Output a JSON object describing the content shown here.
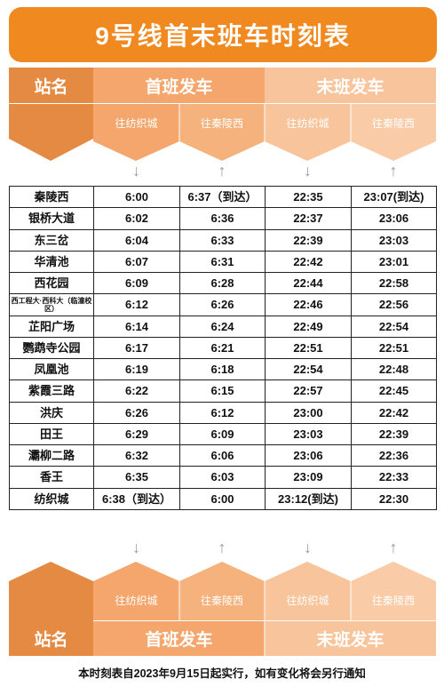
{
  "title": "9号线首末班车时刻表",
  "header": {
    "station_label": "站名",
    "first_train": "首班发车",
    "last_train": "末班发车",
    "dir_fangzhicheng": "往纺织城",
    "dir_qinlingxi": "往秦陵西",
    "arrow_down": "↓",
    "arrow_up": "↑"
  },
  "rows": [
    {
      "station": "秦陵西",
      "first_to_fzc": "6:00",
      "first_to_qlx": "6:37（到达）",
      "last_to_fzc": "22:35",
      "last_to_qlx": "23:07(到达)"
    },
    {
      "station": "银桥大道",
      "first_to_fzc": "6:02",
      "first_to_qlx": "6:36",
      "last_to_fzc": "22:37",
      "last_to_qlx": "23:06"
    },
    {
      "station": "东三岔",
      "first_to_fzc": "6:04",
      "first_to_qlx": "6:33",
      "last_to_fzc": "22:39",
      "last_to_qlx": "23:03"
    },
    {
      "station": "华清池",
      "first_to_fzc": "6:07",
      "first_to_qlx": "6:31",
      "last_to_fzc": "22:42",
      "last_to_qlx": "23:01"
    },
    {
      "station": "西花园",
      "first_to_fzc": "6:09",
      "first_to_qlx": "6:28",
      "last_to_fzc": "22:44",
      "last_to_qlx": "22:58"
    },
    {
      "station": "西工程大·西科大（临潼校区）",
      "first_to_fzc": "6:12",
      "first_to_qlx": "6:26",
      "last_to_fzc": "22:46",
      "last_to_qlx": "22:56"
    },
    {
      "station": "芷阳广场",
      "first_to_fzc": "6:14",
      "first_to_qlx": "6:24",
      "last_to_fzc": "22:49",
      "last_to_qlx": "22:54"
    },
    {
      "station": "鹦鹉寺公园",
      "first_to_fzc": "6:17",
      "first_to_qlx": "6:21",
      "last_to_fzc": "22:51",
      "last_to_qlx": "22:51"
    },
    {
      "station": "凤凰池",
      "first_to_fzc": "6:19",
      "first_to_qlx": "6:18",
      "last_to_fzc": "22:54",
      "last_to_qlx": "22:48"
    },
    {
      "station": "紫霞三路",
      "first_to_fzc": "6:22",
      "first_to_qlx": "6:15",
      "last_to_fzc": "22:57",
      "last_to_qlx": "22:45"
    },
    {
      "station": "洪庆",
      "first_to_fzc": "6:26",
      "first_to_qlx": "6:12",
      "last_to_fzc": "23:00",
      "last_to_qlx": "22:42"
    },
    {
      "station": "田王",
      "first_to_fzc": "6:29",
      "first_to_qlx": "6:09",
      "last_to_fzc": "23:03",
      "last_to_qlx": "22:39"
    },
    {
      "station": "灞柳二路",
      "first_to_fzc": "6:32",
      "first_to_qlx": "6:06",
      "last_to_fzc": "23:06",
      "last_to_qlx": "22:36"
    },
    {
      "station": "香王",
      "first_to_fzc": "6:35",
      "first_to_qlx": "6:03",
      "last_to_fzc": "23:09",
      "last_to_qlx": "22:33"
    },
    {
      "station": "纺织城",
      "first_to_fzc": "6:38（到达）",
      "first_to_qlx": "6:00",
      "last_to_fzc": "23:12(到达)",
      "last_to_qlx": "22:30"
    }
  ],
  "footer": "本时刻表自2023年9月15日起实行，如有变化将会另行通知",
  "colors": {
    "title_bg": "#f0891f",
    "station_text": "#e7821f",
    "header_dark": "#e58a43",
    "header_mid": "#f4a66c",
    "header_light": "#f8c49b"
  }
}
